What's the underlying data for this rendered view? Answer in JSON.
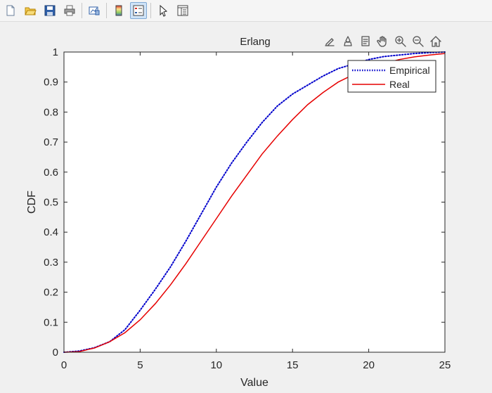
{
  "toolbar": {
    "buttons": [
      {
        "name": "new-figure-icon"
      },
      {
        "name": "open-file-icon"
      },
      {
        "name": "save-icon"
      },
      {
        "name": "print-icon"
      },
      {
        "sep": true
      },
      {
        "name": "link-plot-icon"
      },
      {
        "sep": true
      },
      {
        "name": "colorbar-icon"
      },
      {
        "name": "legend-icon",
        "active": true
      },
      {
        "sep": true
      },
      {
        "name": "edit-plot-pointer-icon"
      },
      {
        "name": "property-inspector-icon"
      }
    ]
  },
  "axes_toolbar": [
    "edit-pen-icon",
    "brush-icon",
    "data-tips-icon",
    "pan-hand-icon",
    "zoom-in-icon",
    "zoom-out-icon",
    "home-icon"
  ],
  "colors": {
    "empirical": "#0000cc",
    "real": "#e60000",
    "axes_bg": "#ffffff",
    "figure_bg": "#f0f0f0"
  },
  "chart_data": {
    "type": "line",
    "title": "Erlang",
    "xlabel": "Value",
    "ylabel": "CDF",
    "xlim": [
      0,
      25
    ],
    "ylim": [
      0,
      1
    ],
    "xticks": [
      "0",
      "5",
      "10",
      "15",
      "20",
      "25"
    ],
    "yticks": [
      "0",
      "0.1",
      "0.2",
      "0.3",
      "0.4",
      "0.5",
      "0.6",
      "0.7",
      "0.8",
      "0.9",
      "1"
    ],
    "grid": false,
    "legend_position": "top-right",
    "series": [
      {
        "name": "Empirical",
        "style": "dotted",
        "x": [
          0,
          1,
          2,
          3,
          4,
          5,
          6,
          7,
          8,
          9,
          10,
          11,
          12,
          13,
          14,
          15,
          16,
          17,
          18,
          19,
          20,
          21,
          22,
          23,
          24,
          25
        ],
        "y": [
          0,
          0.004,
          0.015,
          0.035,
          0.075,
          0.14,
          0.21,
          0.285,
          0.37,
          0.46,
          0.55,
          0.63,
          0.7,
          0.765,
          0.82,
          0.86,
          0.89,
          0.92,
          0.945,
          0.96,
          0.975,
          0.985,
          0.99,
          0.995,
          0.998,
          1.0
        ]
      },
      {
        "name": "Real",
        "style": "solid",
        "x": [
          0,
          1,
          2,
          3,
          4,
          5,
          6,
          7,
          8,
          9,
          10,
          11,
          12,
          13,
          14,
          15,
          16,
          17,
          18,
          19,
          20,
          21,
          22,
          23,
          24,
          25
        ],
        "y": [
          0,
          0.002,
          0.014,
          0.035,
          0.065,
          0.108,
          0.162,
          0.225,
          0.295,
          0.37,
          0.445,
          0.52,
          0.59,
          0.66,
          0.72,
          0.775,
          0.825,
          0.865,
          0.9,
          0.925,
          0.945,
          0.962,
          0.975,
          0.984,
          0.99,
          0.995
        ]
      }
    ]
  }
}
